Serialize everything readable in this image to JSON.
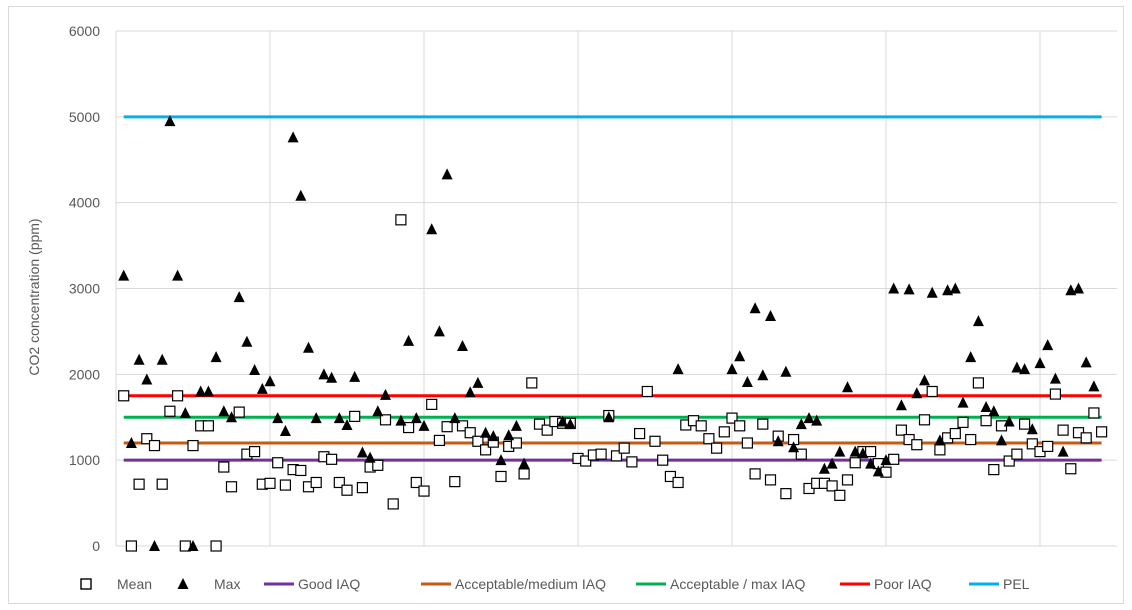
{
  "chart_data": {
    "type": "scatter",
    "title": "",
    "xlabel": "",
    "ylabel": "CO2 concentration (ppm)",
    "ylim": [
      0,
      6000
    ],
    "yticks": [
      "0",
      "1000",
      "2000",
      "3000",
      "4000",
      "5000",
      "6000"
    ],
    "xlim": [
      0,
      130
    ],
    "x_gridlines": [
      0,
      20,
      40,
      60,
      80,
      100,
      120
    ],
    "grid": true,
    "legend_position": "bottom",
    "series": [
      {
        "name": "Mean",
        "marker": "open-square",
        "color": "#000000",
        "points": [
          [
            1,
            1750
          ],
          [
            2,
            0
          ],
          [
            3,
            720
          ],
          [
            4,
            1250
          ],
          [
            5,
            1170
          ],
          [
            6,
            720
          ],
          [
            7,
            1570
          ],
          [
            8,
            1750
          ],
          [
            9,
            0
          ],
          [
            10,
            1170
          ],
          [
            11,
            1400
          ],
          [
            12,
            1400
          ],
          [
            13,
            0
          ],
          [
            14,
            920
          ],
          [
            15,
            690
          ],
          [
            16,
            1560
          ],
          [
            17,
            1070
          ],
          [
            18,
            1100
          ],
          [
            19,
            720
          ],
          [
            20,
            730
          ],
          [
            21,
            970
          ],
          [
            22,
            710
          ],
          [
            23,
            890
          ],
          [
            24,
            880
          ],
          [
            25,
            690
          ],
          [
            26,
            740
          ],
          [
            27,
            1040
          ],
          [
            28,
            1010
          ],
          [
            29,
            740
          ],
          [
            30,
            650
          ],
          [
            31,
            1510
          ],
          [
            32,
            680
          ],
          [
            33,
            920
          ],
          [
            34,
            940
          ],
          [
            35,
            1470
          ],
          [
            36,
            490
          ],
          [
            37,
            3800
          ],
          [
            38,
            1380
          ],
          [
            39,
            740
          ],
          [
            40,
            640
          ],
          [
            41,
            1650
          ],
          [
            42,
            1230
          ],
          [
            43,
            1390
          ],
          [
            44,
            750
          ],
          [
            45,
            1400
          ],
          [
            46,
            1320
          ],
          [
            47,
            1220
          ],
          [
            48,
            1120
          ],
          [
            49,
            1210
          ],
          [
            50,
            810
          ],
          [
            51,
            1160
          ],
          [
            52,
            1200
          ],
          [
            53,
            840
          ],
          [
            54,
            1900
          ],
          [
            55,
            1420
          ],
          [
            56,
            1350
          ],
          [
            57,
            1450
          ],
          [
            58,
            1430
          ],
          [
            59,
            1430
          ],
          [
            60,
            1020
          ],
          [
            61,
            990
          ],
          [
            62,
            1060
          ],
          [
            63,
            1070
          ],
          [
            64,
            1520
          ],
          [
            65,
            1050
          ],
          [
            66,
            1140
          ],
          [
            67,
            980
          ],
          [
            68,
            1310
          ],
          [
            69,
            1800
          ],
          [
            70,
            1220
          ],
          [
            71,
            1000
          ],
          [
            72,
            810
          ],
          [
            73,
            740
          ],
          [
            74,
            1410
          ],
          [
            75,
            1460
          ],
          [
            76,
            1400
          ],
          [
            77,
            1250
          ],
          [
            78,
            1140
          ],
          [
            79,
            1330
          ],
          [
            80,
            1490
          ],
          [
            81,
            1400
          ],
          [
            82,
            1200
          ],
          [
            83,
            840
          ],
          [
            84,
            1420
          ],
          [
            85,
            770
          ],
          [
            86,
            1280
          ],
          [
            87,
            610
          ],
          [
            88,
            1240
          ],
          [
            89,
            1070
          ],
          [
            90,
            670
          ],
          [
            91,
            730
          ],
          [
            92,
            730
          ],
          [
            93,
            700
          ],
          [
            94,
            590
          ],
          [
            95,
            770
          ],
          [
            96,
            970
          ],
          [
            97,
            1100
          ],
          [
            98,
            1100
          ],
          [
            99,
            960
          ],
          [
            100,
            860
          ],
          [
            101,
            1010
          ],
          [
            102,
            1350
          ],
          [
            103,
            1240
          ],
          [
            104,
            1180
          ],
          [
            105,
            1470
          ],
          [
            106,
            1800
          ],
          [
            107,
            1120
          ],
          [
            108,
            1260
          ],
          [
            109,
            1310
          ],
          [
            110,
            1440
          ],
          [
            111,
            1240
          ],
          [
            112,
            1900
          ],
          [
            113,
            1460
          ],
          [
            114,
            890
          ],
          [
            115,
            1400
          ],
          [
            116,
            990
          ],
          [
            117,
            1070
          ],
          [
            118,
            1420
          ],
          [
            119,
            1190
          ],
          [
            120,
            1100
          ],
          [
            121,
            1160
          ],
          [
            122,
            1770
          ],
          [
            123,
            1350
          ],
          [
            124,
            900
          ],
          [
            125,
            1320
          ],
          [
            126,
            1260
          ],
          [
            127,
            1550
          ],
          [
            128,
            1330
          ]
        ]
      },
      {
        "name": "Max",
        "marker": "filled-triangle",
        "color": "#000000",
        "points": [
          [
            1,
            3150
          ],
          [
            2,
            1200
          ],
          [
            3,
            2170
          ],
          [
            4,
            1940
          ],
          [
            5,
            0
          ],
          [
            6,
            2170
          ],
          [
            7,
            4950
          ],
          [
            8,
            3150
          ],
          [
            9,
            1550
          ],
          [
            10,
            0
          ],
          [
            11,
            1800
          ],
          [
            12,
            1800
          ],
          [
            13,
            2200
          ],
          [
            14,
            1570
          ],
          [
            15,
            1500
          ],
          [
            16,
            2900
          ],
          [
            17,
            2380
          ],
          [
            18,
            2050
          ],
          [
            19,
            1830
          ],
          [
            20,
            1920
          ],
          [
            21,
            1490
          ],
          [
            22,
            1340
          ],
          [
            23,
            4760
          ],
          [
            24,
            4080
          ],
          [
            25,
            2310
          ],
          [
            26,
            1490
          ],
          [
            27,
            2000
          ],
          [
            28,
            1960
          ],
          [
            29,
            1490
          ],
          [
            30,
            1410
          ],
          [
            31,
            1970
          ],
          [
            32,
            1090
          ],
          [
            33,
            1030
          ],
          [
            34,
            1570
          ],
          [
            35,
            1760
          ],
          [
            37,
            1460
          ],
          [
            38,
            2390
          ],
          [
            39,
            1490
          ],
          [
            40,
            1400
          ],
          [
            41,
            3690
          ],
          [
            42,
            2500
          ],
          [
            43,
            4330
          ],
          [
            44,
            1490
          ],
          [
            45,
            2330
          ],
          [
            46,
            1790
          ],
          [
            47,
            1900
          ],
          [
            48,
            1320
          ],
          [
            49,
            1280
          ],
          [
            50,
            1000
          ],
          [
            51,
            1290
          ],
          [
            52,
            1400
          ],
          [
            53,
            960
          ],
          [
            58,
            1450
          ],
          [
            59,
            1420
          ],
          [
            64,
            1500
          ],
          [
            73,
            2060
          ],
          [
            80,
            2060
          ],
          [
            81,
            2210
          ],
          [
            82,
            1910
          ],
          [
            83,
            2770
          ],
          [
            84,
            1990
          ],
          [
            85,
            2680
          ],
          [
            86,
            1220
          ],
          [
            87,
            2030
          ],
          [
            88,
            1150
          ],
          [
            89,
            1420
          ],
          [
            90,
            1490
          ],
          [
            91,
            1460
          ],
          [
            92,
            900
          ],
          [
            93,
            960
          ],
          [
            94,
            1100
          ],
          [
            95,
            1850
          ],
          [
            96,
            1100
          ],
          [
            97,
            1080
          ],
          [
            98,
            960
          ],
          [
            99,
            870
          ],
          [
            100,
            1000
          ],
          [
            101,
            3000
          ],
          [
            102,
            1640
          ],
          [
            103,
            2990
          ],
          [
            104,
            1780
          ],
          [
            105,
            1930
          ],
          [
            106,
            2950
          ],
          [
            107,
            1230
          ],
          [
            108,
            2980
          ],
          [
            109,
            3000
          ],
          [
            110,
            1670
          ],
          [
            111,
            2200
          ],
          [
            112,
            2620
          ],
          [
            113,
            1620
          ],
          [
            114,
            1570
          ],
          [
            115,
            1230
          ],
          [
            116,
            1450
          ],
          [
            117,
            2080
          ],
          [
            118,
            2060
          ],
          [
            119,
            1360
          ],
          [
            120,
            2130
          ],
          [
            121,
            2340
          ],
          [
            122,
            1950
          ],
          [
            123,
            1100
          ],
          [
            124,
            2980
          ],
          [
            125,
            3000
          ],
          [
            126,
            2140
          ],
          [
            127,
            1860
          ]
        ]
      }
    ],
    "reference_lines": [
      {
        "name": "Good IAQ",
        "value": 1000,
        "color": "#7030a0"
      },
      {
        "name": "Acceptable/medium IAQ",
        "value": 1200,
        "color": "#c55a11"
      },
      {
        "name": "Acceptable / max IAQ",
        "value": 1500,
        "color": "#00b050"
      },
      {
        "name": "Poor IAQ",
        "value": 1750,
        "color": "#ff0000"
      },
      {
        "name": "PEL",
        "value": 5000,
        "color": "#00b0f0"
      }
    ]
  }
}
